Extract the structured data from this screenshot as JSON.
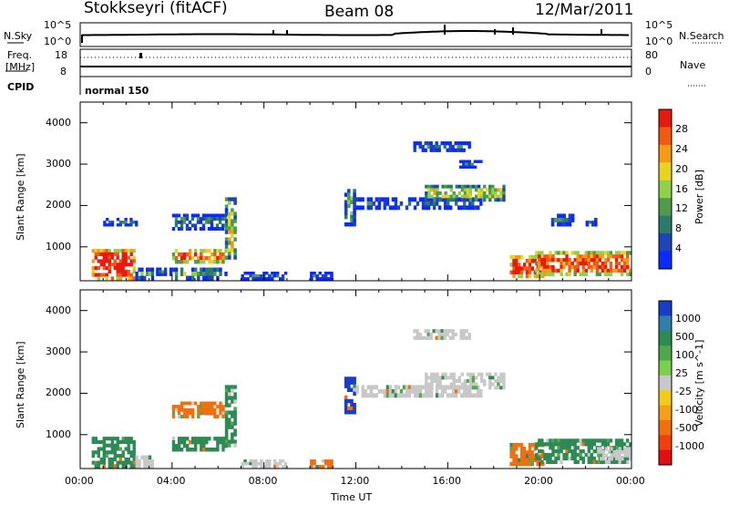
{
  "header": {
    "station": "Stokkseyri (fitACF)",
    "beam": "Beam 08",
    "date": "12/Mar/2011"
  },
  "noise_panel": {
    "left_label": "N.Sky",
    "right_label": "N.Search",
    "ticks_left": [
      "10^5",
      "10^0"
    ],
    "ticks_right": [
      "10^5",
      "10^0"
    ]
  },
  "freq_panel": {
    "left_label_1": "Freq.",
    "left_label_2": "[MHz]",
    "right_label": "Nave",
    "ticks_left": [
      "18",
      "8"
    ],
    "ticks_right": [
      "80",
      "0"
    ]
  },
  "cpid_panel": {
    "left_label": "CPID",
    "program": "normal 150"
  },
  "chart_data": [
    {
      "type": "heatmap",
      "name": "power",
      "ylabel": "Slant Range [km]",
      "xlabel": "Time UT",
      "xlim": [
        0,
        24
      ],
      "ylim": [
        180,
        4500
      ],
      "ytick_labels": [
        "1000",
        "2000",
        "3000",
        "4000"
      ],
      "xtick_labels": [
        "00:00",
        "04:00",
        "08:00",
        "12:00",
        "16:00",
        "20:00",
        "00:00"
      ],
      "colorbar": {
        "label": "Power [dB]",
        "tick_labels": [
          "4",
          "8",
          "12",
          "16",
          "20",
          "24",
          "28"
        ],
        "colors": [
          "#0a2bff",
          "#1e44b8",
          "#2b7a6a",
          "#4f9b4b",
          "#8fd24a",
          "#e8d41e",
          "#f59a14",
          "#f05a12",
          "#e61a10"
        ]
      },
      "blobs": [
        {
          "t0": 0.5,
          "t1": 2.4,
          "r0": 200,
          "r1": 950,
          "level": 28
        },
        {
          "t0": 2.4,
          "t1": 3.2,
          "r0": 200,
          "r1": 500,
          "level": 12
        },
        {
          "t0": 3.3,
          "t1": 4.0,
          "r0": 300,
          "r1": 500,
          "level": 8
        },
        {
          "t0": 4.0,
          "t1": 6.4,
          "r0": 600,
          "r1": 950,
          "level": 24
        },
        {
          "t0": 4.0,
          "t1": 6.4,
          "r0": 200,
          "r1": 500,
          "level": 12
        },
        {
          "t0": 4.0,
          "t1": 6.5,
          "r0": 1400,
          "r1": 1800,
          "level": 8
        },
        {
          "t0": 1.0,
          "t1": 2.5,
          "r0": 1500,
          "r1": 1700,
          "level": 8
        },
        {
          "t0": 6.3,
          "t1": 6.8,
          "r0": 700,
          "r1": 2200,
          "level": 16
        },
        {
          "t0": 7.0,
          "t1": 9.0,
          "r0": 200,
          "r1": 400,
          "level": 8
        },
        {
          "t0": 11.5,
          "t1": 12.0,
          "r0": 1500,
          "r1": 2400,
          "level": 12
        },
        {
          "t0": 12.0,
          "t1": 17.5,
          "r0": 1900,
          "r1": 2200,
          "level": 8
        },
        {
          "t0": 15.0,
          "t1": 18.5,
          "r0": 2100,
          "r1": 2500,
          "level": 16
        },
        {
          "t0": 14.5,
          "t1": 17.0,
          "r0": 3300,
          "r1": 3550,
          "level": 8
        },
        {
          "t0": 16.5,
          "t1": 17.5,
          "r0": 2900,
          "r1": 3100,
          "level": 8
        },
        {
          "t0": 18.7,
          "t1": 20.2,
          "r0": 250,
          "r1": 800,
          "level": 28
        },
        {
          "t0": 19.8,
          "t1": 24.0,
          "r0": 300,
          "r1": 900,
          "level": 24
        },
        {
          "t0": 20.5,
          "t1": 21.5,
          "r0": 1500,
          "r1": 1800,
          "level": 8
        },
        {
          "t0": 22.0,
          "t1": 22.5,
          "r0": 1500,
          "r1": 1700,
          "level": 8
        },
        {
          "t0": 10.0,
          "t1": 11.0,
          "r0": 200,
          "r1": 400,
          "level": 8
        }
      ]
    },
    {
      "type": "heatmap",
      "name": "velocity",
      "ylabel": "Slant Range [km]",
      "xlabel": "Time UT",
      "xlim": [
        0,
        24
      ],
      "ylim": [
        180,
        4500
      ],
      "ytick_labels": [
        "1000",
        "2000",
        "3000",
        "4000"
      ],
      "xtick_labels": [
        "00:00",
        "04:00",
        "08:00",
        "12:00",
        "16:00",
        "20:00",
        "00:00"
      ],
      "colorbar": {
        "label": "Velocity [m s^-1]",
        "tick_labels": [
          "1000",
          "500",
          "100",
          "25",
          "-25",
          "-100",
          "-500",
          "-1000"
        ],
        "colors": [
          "#1a3cc8",
          "#2f7fa8",
          "#2e8a55",
          "#4fa84a",
          "#7bd04a",
          "#c8c8c8",
          "#f2cc1a",
          "#f5a016",
          "#f07010",
          "#f04010",
          "#e01010"
        ]
      },
      "blobs": [
        {
          "t0": 0.5,
          "t1": 2.4,
          "r0": 200,
          "r1": 950,
          "level": 100
        },
        {
          "t0": 2.4,
          "t1": 3.2,
          "r0": 200,
          "r1": 500,
          "level": 0
        },
        {
          "t0": 4.0,
          "t1": 6.4,
          "r0": 600,
          "r1": 950,
          "level": 100
        },
        {
          "t0": 4.0,
          "t1": 6.4,
          "r0": 1400,
          "r1": 1800,
          "level": -100
        },
        {
          "t0": 6.3,
          "t1": 6.8,
          "r0": 700,
          "r1": 2200,
          "level": 100
        },
        {
          "t0": 7.0,
          "t1": 9.0,
          "r0": 200,
          "r1": 400,
          "level": 0
        },
        {
          "t0": 11.5,
          "t1": 12.0,
          "r0": 1500,
          "r1": 2400,
          "level": 500
        },
        {
          "t0": 12.0,
          "t1": 17.5,
          "r0": 1900,
          "r1": 2200,
          "level": 0
        },
        {
          "t0": 15.0,
          "t1": 18.5,
          "r0": 2100,
          "r1": 2500,
          "level": 0
        },
        {
          "t0": 14.5,
          "t1": 17.0,
          "r0": 3300,
          "r1": 3550,
          "level": 0
        },
        {
          "t0": 18.7,
          "t1": 20.2,
          "r0": 250,
          "r1": 800,
          "level": -100
        },
        {
          "t0": 19.8,
          "t1": 24.0,
          "r0": 300,
          "r1": 900,
          "level": 100
        },
        {
          "t0": 22.5,
          "t1": 24.0,
          "r0": 300,
          "r1": 700,
          "level": 0
        },
        {
          "t0": 10.0,
          "t1": 11.0,
          "r0": 200,
          "r1": 400,
          "level": -100
        }
      ]
    }
  ]
}
